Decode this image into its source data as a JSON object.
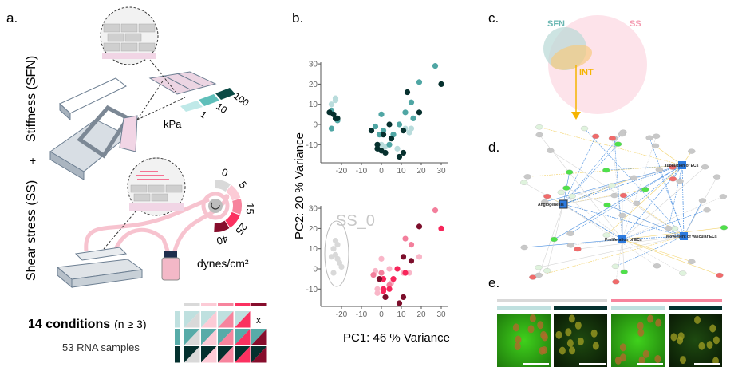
{
  "panels": {
    "a": {
      "label": "a.",
      "stiffness_title": "Stiffness (SFN)",
      "plus": "+",
      "shear_title": "Shear stress (SS)",
      "stiffness_unit": "kPa",
      "stiffness_levels": [
        "1",
        "10",
        "100"
      ],
      "shear_unit": "dynes/cm²",
      "shear_levels": [
        "0",
        "5",
        "15",
        "25",
        "40"
      ],
      "conditions_bold": "14 conditions",
      "conditions_note": "(n ≥ 3)",
      "samples": "53 RNA samples",
      "missing_mark": "x"
    },
    "b": {
      "label": "b.",
      "group_label": "SS_0"
    },
    "c": {
      "label": "c.",
      "sets": [
        "SFN",
        "SS",
        "INT"
      ]
    },
    "d": {
      "label": "d.",
      "hubs": [
        "Angiogenesis",
        "Proliferation of ECs",
        "Tubulation of ECs",
        "Movement of vascular ECs"
      ]
    },
    "e": {
      "label": "e."
    }
  },
  "colors": {
    "stiffness": [
      "#bfe0df",
      "#57aba8",
      "#04302e"
    ],
    "shear": [
      "#d9d9d9",
      "#fccbd6",
      "#f7849d",
      "#fb3160",
      "#870d2c"
    ],
    "int": "#f5b400"
  },
  "chart_data": [
    {
      "type": "scatter",
      "xlabel": "",
      "ylabel": "PC2: 20 % Variance",
      "xlim": [
        -28,
        32
      ],
      "ylim": [
        -18,
        31
      ],
      "xticks": [
        "-20",
        "-10",
        "0",
        "10",
        "20",
        "30"
      ],
      "yticks": [
        "-10",
        "0",
        "10",
        "20",
        "30"
      ],
      "grid": false,
      "series": [
        {
          "color": "#b9dcdc",
          "points": [
            [
              -25,
              10
            ],
            [
              -23,
              13
            ],
            [
              -23,
              12
            ],
            [
              0,
              -10
            ],
            [
              2,
              -11
            ],
            [
              8,
              -12
            ],
            [
              12,
              -2
            ],
            [
              14,
              -4
            ],
            [
              15,
              -2
            ]
          ]
        },
        {
          "color": "#4fa6a4",
          "points": [
            [
              -25,
              7
            ],
            [
              -22,
              2
            ],
            [
              -25,
              -2
            ],
            [
              -3,
              -1
            ],
            [
              0,
              5
            ],
            [
              -1,
              -5
            ],
            [
              1,
              -3
            ],
            [
              4,
              -10
            ],
            [
              6,
              -5
            ],
            [
              9,
              0
            ],
            [
              12,
              6
            ],
            [
              15,
              11
            ],
            [
              16,
              3
            ],
            [
              19,
              21
            ],
            [
              27,
              29
            ]
          ]
        },
        {
          "color": "#06302e",
          "points": [
            [
              -26,
              6
            ],
            [
              -24,
              5
            ],
            [
              -23,
              3
            ],
            [
              -22,
              3
            ],
            [
              -5,
              -3
            ],
            [
              -2,
              -10
            ],
            [
              -2,
              -12
            ],
            [
              0,
              -13
            ],
            [
              2,
              -14
            ],
            [
              1,
              -5
            ],
            [
              4,
              0
            ],
            [
              5,
              -7
            ],
            [
              9,
              -16
            ],
            [
              11,
              -14
            ],
            [
              11,
              -3
            ],
            [
              13,
              16
            ],
            [
              19,
              6
            ],
            [
              30,
              20
            ]
          ]
        }
      ]
    },
    {
      "type": "scatter",
      "xlabel": "PC1: 46 % Variance",
      "ylabel": "",
      "xlim": [
        -28,
        32
      ],
      "ylim": [
        -19,
        31
      ],
      "xticks": [
        "-20",
        "-10",
        "0",
        "10",
        "20",
        "30"
      ],
      "yticks": [
        "-10",
        "0",
        "10",
        "20",
        "30"
      ],
      "grid": false,
      "series": [
        {
          "color": "#d9d9d9",
          "points": [
            [
              -25,
              6
            ],
            [
              -24,
              10
            ],
            [
              -23,
              14
            ],
            [
              -22,
              12
            ],
            [
              -22,
              5
            ],
            [
              -21,
              3
            ],
            [
              -20,
              1
            ],
            [
              -24,
              -2
            ],
            [
              -23,
              7
            ]
          ]
        },
        {
          "color": "#f9b6c8",
          "points": [
            [
              0,
              5
            ],
            [
              -3,
              -1
            ],
            [
              4,
              0
            ],
            [
              14,
              -2
            ],
            [
              19,
              6
            ],
            [
              -2,
              -10
            ],
            [
              -2,
              -12
            ],
            [
              5,
              -7
            ],
            [
              11,
              -2
            ]
          ]
        },
        {
          "color": "#f37f9c",
          "points": [
            [
              -4,
              -3
            ],
            [
              0,
              -2
            ],
            [
              12,
              15
            ],
            [
              15,
              12
            ],
            [
              27,
              29
            ],
            [
              4,
              -8
            ]
          ]
        },
        {
          "color": "#f7255a",
          "points": [
            [
              1,
              -5
            ],
            [
              1,
              -10
            ],
            [
              1,
              -11
            ],
            [
              4,
              -10
            ],
            [
              6,
              -5
            ],
            [
              8,
              0
            ],
            [
              12,
              -2
            ],
            [
              30,
              20
            ]
          ]
        },
        {
          "color": "#7c0e2b",
          "points": [
            [
              -1,
              -5
            ],
            [
              2,
              -14
            ],
            [
              9,
              -17
            ],
            [
              11,
              -14
            ],
            [
              11,
              6
            ],
            [
              15,
              4
            ],
            [
              19,
              21
            ]
          ]
        }
      ]
    }
  ]
}
